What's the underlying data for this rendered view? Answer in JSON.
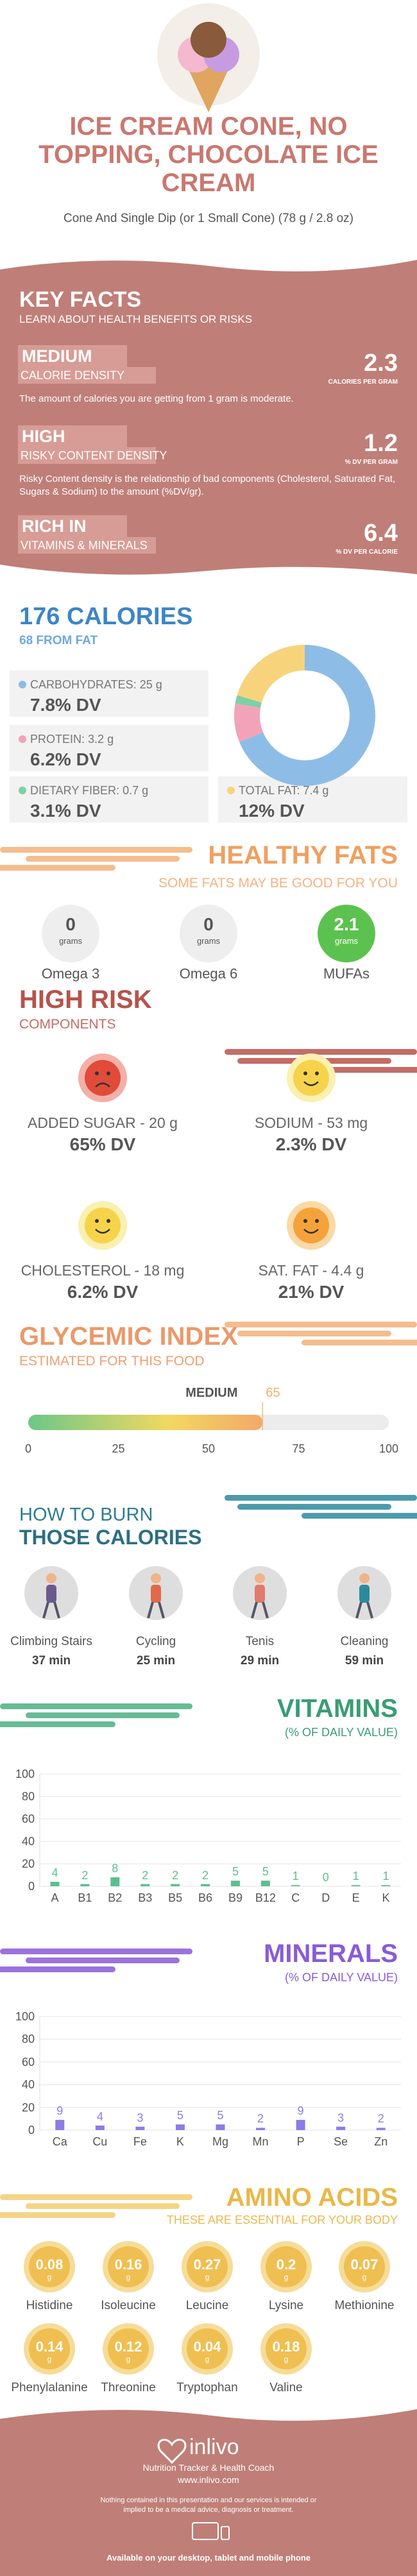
{
  "header": {
    "title": "ICE CREAM CONE, NO TOPPING, CHOCOLATE ICE CREAM",
    "subtitle": "Cone And Single Dip (or 1 Small Cone) (78 g / 2.8 oz)"
  },
  "key_facts": {
    "title": "KEY FACTS",
    "subtitle": "LEARN ABOUT HEALTH BENEFITS OR RISKS",
    "items": [
      {
        "level": "MEDIUM",
        "name": "CALORIE DENSITY",
        "value": 2.3,
        "unit": "CALORIES PER GRAM",
        "description": "The amount of calories you are getting from 1 gram is moderate."
      },
      {
        "level": "HIGH",
        "name": "RISKY CONTENT DENSITY",
        "value": 1.2,
        "unit": "% DV PER GRAM",
        "description": "Risky Content density is the relationship of bad components (Cholesterol, Saturated Fat, Sugars & Sodium) to the amount (%DV/gr)."
      },
      {
        "level": "RICH IN",
        "name": "VITAMINS & MINERALS",
        "value": 6.4,
        "unit": "% DV PER CALORIE"
      }
    ]
  },
  "calories": {
    "title": "176 CALORIES",
    "subtitle": "68 FROM FAT",
    "nutrients": [
      {
        "name": "CARBOHYDRATES:",
        "amount": 25,
        "unit": "g",
        "dv": "7.8% DV",
        "color": "#8dbde6"
      },
      {
        "name": "PROTEIN:",
        "amount": 3.2,
        "unit": "g",
        "dv": "6.2% DV",
        "color": "#f2a3b9"
      },
      {
        "name": "DIETARY FIBER:",
        "amount": 0.7,
        "unit": "g",
        "dv": "3.1% DV",
        "color": "#7fcfa6"
      },
      {
        "name": "TOTAL FAT:",
        "amount": 7.4,
        "unit": "g",
        "dv": "12% DV",
        "color": "#f7d47c"
      }
    ]
  },
  "healthy_fats": {
    "title": "HEALTHY FATS",
    "subtitle": "SOME FATS MAY BE GOOD FOR YOU",
    "items": [
      {
        "name": "Omega 3",
        "value": 0,
        "unit": "grams",
        "color": "#eeeeee"
      },
      {
        "name": "Omega 6",
        "value": 0,
        "unit": "grams",
        "color": "#eeeeee"
      },
      {
        "name": "MUFAs",
        "value": 2.1,
        "unit": "grams",
        "color": "#5cc24f"
      }
    ]
  },
  "high_risk": {
    "title": "HIGH RISK",
    "subtitle": "COMPONENTS",
    "items": [
      {
        "name": "ADDED SUGAR - 20 g",
        "dv": "65% DV"
      },
      {
        "name": "SODIUM - 53 mg",
        "dv": "2.3% DV"
      },
      {
        "name": "CHOLESTEROL - 18 mg",
        "dv": "6.2% DV"
      },
      {
        "name": "SAT. FAT - 4.4 g",
        "dv": "21% DV"
      }
    ]
  },
  "glycemic_index": {
    "title": "GLYCEMIC INDEX",
    "subtitle": "ESTIMATED FOR THIS FOOD",
    "level": "MEDIUM",
    "value": 65,
    "xlim": [
      0,
      100
    ],
    "xticks": [
      0,
      25,
      50,
      75,
      100
    ]
  },
  "burn": {
    "title": "HOW TO BURN",
    "subtitle": "THOSE CALORIES",
    "activities": [
      {
        "name": "Climbing Stairs",
        "time": "37 min"
      },
      {
        "name": "Cycling",
        "time": "25 min"
      },
      {
        "name": "Tenis",
        "time": "29 min"
      },
      {
        "name": "Cleaning",
        "time": "59 min"
      }
    ]
  },
  "vitamins": {
    "type": "bar",
    "title": "VITAMINS",
    "subtitle": "(% OF DAILY VALUE)",
    "categories": [
      "A",
      "B1",
      "B2",
      "B3",
      "B5",
      "B6",
      "B9",
      "B12",
      "C",
      "D",
      "E",
      "K"
    ],
    "values": [
      4,
      2,
      8,
      2,
      2,
      2,
      5,
      5,
      1,
      0,
      1,
      1
    ],
    "color": "#5cbf8f",
    "ylim": [
      0,
      100
    ],
    "yticks": [
      0,
      20,
      40,
      60,
      80,
      100
    ],
    "grid": true
  },
  "minerals": {
    "type": "bar",
    "title": "MINERALS",
    "subtitle": "(% OF DAILY VALUE)",
    "categories": [
      "Ca",
      "Cu",
      "Fe",
      "K",
      "Mg",
      "Mn",
      "P",
      "Se",
      "Zn"
    ],
    "values": [
      9,
      4,
      3,
      5,
      5,
      2,
      9,
      3,
      2
    ],
    "color": "#8a7de6",
    "ylim": [
      0,
      100
    ],
    "yticks": [
      0,
      20,
      40,
      60,
      80,
      100
    ],
    "grid": true
  },
  "amino_acids": {
    "title": "AMINO ACIDS",
    "subtitle": "THESE ARE ESSENTIAL FOR YOUR BODY",
    "unit": "g",
    "items": [
      {
        "name": "Histidine",
        "value": 0.08
      },
      {
        "name": "Isoleucine",
        "value": 0.16
      },
      {
        "name": "Leucine",
        "value": 0.27
      },
      {
        "name": "Lysine",
        "value": 0.2
      },
      {
        "name": "Methionine",
        "value": 0.07
      },
      {
        "name": "Phenylalanine",
        "value": 0.14
      },
      {
        "name": "Threonine",
        "value": 0.12
      },
      {
        "name": "Tryptophan",
        "value": 0.04
      },
      {
        "name": "Valine",
        "value": 0.18
      }
    ]
  },
  "footer": {
    "brand": "inlivo",
    "tagline": "Nutrition Tracker & Health Coach",
    "url": "www.inlivo.com",
    "disclaimer": "Nothing contained in this presentation and our services is intended or implied to be a medical advice, diagnosis or treatment.",
    "availability": "Available on your desktop, tablet and mobile phone"
  }
}
